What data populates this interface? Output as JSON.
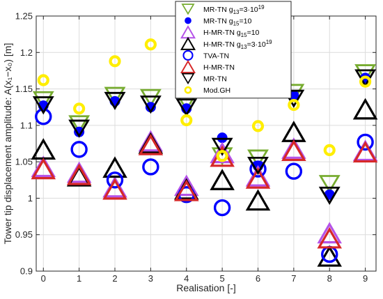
{
  "chart_data": {
    "type": "scatter",
    "xlabel": "Realisation [-]",
    "ylabel": "Tower tip displacement amplitude: A(x₁−x₀) [m]",
    "xlim": [
      -0.2,
      9.3
    ],
    "ylim": [
      0.9,
      1.25
    ],
    "xticks": [
      "0",
      "1",
      "2",
      "3",
      "4",
      "5",
      "6",
      "7",
      "8",
      "9"
    ],
    "yticks": [
      "0.9",
      "0.95",
      "1",
      "1.05",
      "1.1",
      "1.15",
      "1.2",
      "1.25"
    ],
    "grid": true,
    "legend_position": "top-right",
    "x": [
      0,
      1,
      2,
      3,
      4,
      5,
      6,
      7,
      8,
      9
    ],
    "series": [
      {
        "name": "MR-TN g₁₃=3·10¹⁹",
        "marker": "triangle-down",
        "color": "#77ac30",
        "filled": false,
        "values": [
          1.135,
          1.102,
          1.141,
          1.138,
          1.132,
          1.058,
          1.055,
          1.145,
          1.02,
          1.172
        ]
      },
      {
        "name": "MR-TN g₁₅=10",
        "marker": "circle",
        "color": "#0000ff",
        "filled": true,
        "values": [
          1.127,
          1.091,
          1.133,
          1.125,
          1.123,
          1.083,
          1.044,
          1.141,
          1.005,
          1.165
        ]
      },
      {
        "name": "H-MR-TN g₁₅=10",
        "marker": "triangle-up",
        "color": "#b553e8",
        "filled": false,
        "values": [
          1.043,
          1.035,
          1.015,
          1.078,
          1.017,
          1.062,
          1.03,
          1.068,
          0.952,
          1.065
        ]
      },
      {
        "name": "H-MR-TN g₁₃=3·10¹⁹",
        "marker": "triangle-up",
        "color": "#000000",
        "filled": false,
        "values": [
          1.067,
          1.03,
          1.042,
          1.075,
          1.012,
          1.025,
          0.997,
          1.091,
          0.92,
          1.122
        ]
      },
      {
        "name": "TVA-TN",
        "marker": "circle",
        "color": "#0000ff",
        "filled": false,
        "values": [
          1.112,
          1.067,
          1.025,
          1.043,
          1.005,
          0.987,
          1.04,
          1.037,
          0.923,
          1.077
        ]
      },
      {
        "name": "H-MR-TN",
        "marker": "triangle-up",
        "color": "#d62728",
        "filled": false,
        "values": [
          1.04,
          1.032,
          1.012,
          1.073,
          1.01,
          1.057,
          1.027,
          1.065,
          0.945,
          1.063
        ]
      },
      {
        "name": "MR-TN",
        "marker": "triangle-down",
        "color": "#000000",
        "filled": false,
        "values": [
          1.128,
          1.096,
          1.134,
          1.129,
          1.125,
          1.071,
          1.045,
          1.137,
          1.004,
          1.165
        ]
      },
      {
        "name": "Mod.GH",
        "marker": "circle-thick",
        "color": "#ffee00",
        "filled": false,
        "values": [
          1.162,
          1.123,
          1.188,
          1.211,
          1.107,
          1.058,
          1.099,
          1.128,
          1.066,
          1.16
        ]
      }
    ]
  }
}
